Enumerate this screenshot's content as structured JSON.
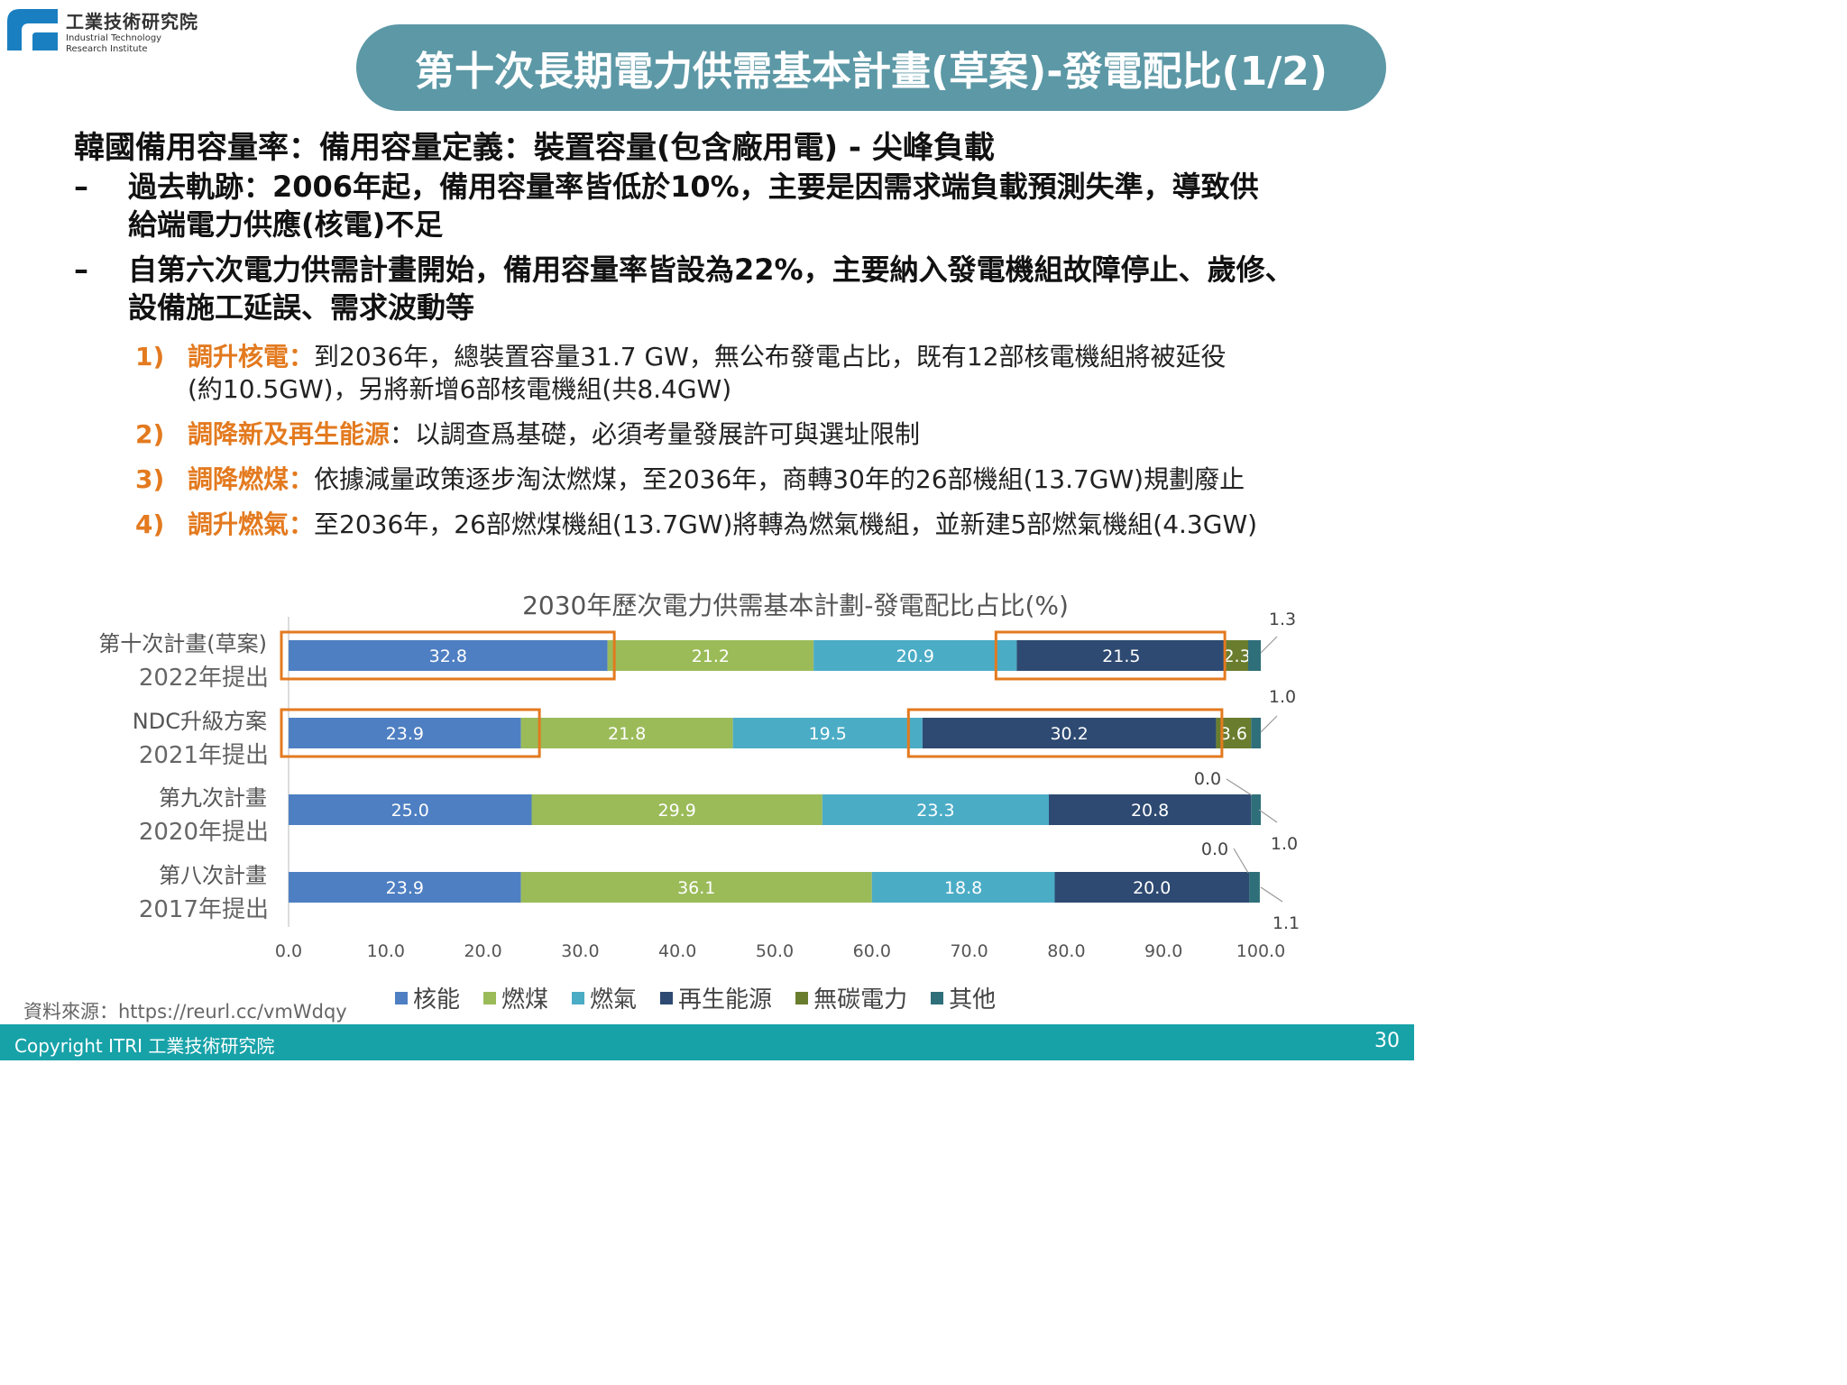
{
  "org": {
    "name_zh": "工業技術研究院",
    "name_en_1": "Industrial Technology",
    "name_en_2": "Research Institute"
  },
  "title": "第十次長期電力供需基本計畫(草案)-發電配比(1/2)",
  "heading": "韓國備用容量率：備用容量定義：裝置容量(包含廠用電) - 尖峰負載",
  "dash_items": [
    {
      "mark": "–",
      "lines": [
        "過去軌跡：2006年起，備用容量率皆低於10%，主要是因需求端負載預測失準，導致供",
        "給端電力供應(核電)不足"
      ]
    },
    {
      "mark": "–",
      "lines": [
        "自第六次電力供需計畫開始，備用容量率皆設為22%，主要納入發電機組故障停止、歲修、",
        "設備施工延誤、需求波動等"
      ]
    }
  ],
  "numbered_items": [
    {
      "num": "1)",
      "label": "調升核電：",
      "lines": [
        "到2036年，總裝置容量31.7  GW，無公布發電占比，既有12部核電機組將被延役",
        "(約10.5GW)，另將新增6部核電機組(共8.4GW)"
      ]
    },
    {
      "num": "2)",
      "label": "調降新及再生能源",
      "lines": [
        "：以調查爲基礎，必須考量發展許可與選址限制"
      ]
    },
    {
      "num": "3)",
      "label": "調降燃煤：",
      "lines": [
        "依據減量政策逐步淘汰燃煤，至2036年，商轉30年的26部機組(13.7GW)規劃廢止"
      ]
    },
    {
      "num": "4)",
      "label": "調升燃氣：",
      "lines": [
        "至2036年，26部燃煤機組(13.7GW)將轉為燃氣機組，並新建5部燃氣機組(4.3GW)"
      ]
    }
  ],
  "chart_data": {
    "type": "bar",
    "orientation": "horizontal",
    "stacked": true,
    "title": "2030年歷次電力供需基本計劃-發電配比占比(%)",
    "categories": [
      [
        "第十次計畫(草案)",
        "2022年提出"
      ],
      [
        "NDC升級方案",
        "2021年提出"
      ],
      [
        "第九次計畫",
        "2020年提出"
      ],
      [
        "第八次計畫",
        "2017年提出"
      ]
    ],
    "series": [
      {
        "name": "核能",
        "color": "#4e7fc2",
        "values": [
          32.8,
          23.9,
          25.0,
          23.9
        ],
        "labels": [
          "32.8",
          "23.9",
          "25.0",
          "23.9"
        ]
      },
      {
        "name": "燃煤",
        "color": "#9bbb59",
        "values": [
          21.2,
          21.8,
          29.9,
          36.1
        ],
        "labels": [
          "21.2",
          "21.8",
          "29.9",
          "36.1"
        ]
      },
      {
        "name": "燃氣",
        "color": "#4bacc6",
        "values": [
          20.9,
          19.5,
          23.3,
          18.8
        ],
        "labels": [
          "20.9",
          "19.5",
          "23.3",
          "18.8"
        ]
      },
      {
        "name": "再生能源",
        "color": "#2e4a72",
        "values": [
          21.5,
          30.2,
          20.8,
          20.0
        ],
        "labels": [
          "21.5",
          "30.2",
          "20.8",
          "20.0"
        ]
      },
      {
        "name": "無碳電力",
        "color": "#6a7d2e",
        "values": [
          2.3,
          3.6,
          0.0,
          0.0
        ],
        "labels": [
          "2.3",
          "3.6",
          "",
          ""
        ]
      },
      {
        "name": "其他",
        "color": "#2f6f7a",
        "values": [
          1.3,
          1.0,
          1.0,
          1.1
        ],
        "labels": [
          "",
          "",
          "",
          ""
        ]
      }
    ],
    "callouts": [
      [
        "1.3"
      ],
      [
        "1.0"
      ],
      [
        "0.0",
        "1.0"
      ],
      [
        "0.0",
        "1.1"
      ]
    ],
    "xlim": [
      0,
      100
    ],
    "xticks": [
      "0.0",
      "10.0",
      "20.0",
      "30.0",
      "40.0",
      "50.0",
      "60.0",
      "70.0",
      "80.0",
      "90.0",
      "100.0"
    ],
    "highlight_color": "#e37a1f",
    "highlights": [
      {
        "row": 0,
        "from": 0,
        "to": 33.5
      },
      {
        "row": 0,
        "from": 73.5,
        "to": 96.3
      },
      {
        "row": 1,
        "from": 0,
        "to": 25.8
      },
      {
        "row": 1,
        "from": 64.5,
        "to": 96.0
      }
    ],
    "legend_position": "bottom",
    "grid": false
  },
  "source": "資料來源：https://reurl.cc/vmWdqy",
  "footer": {
    "copyright": "Copyright ITRI 工業技術研究院",
    "page": "30"
  }
}
